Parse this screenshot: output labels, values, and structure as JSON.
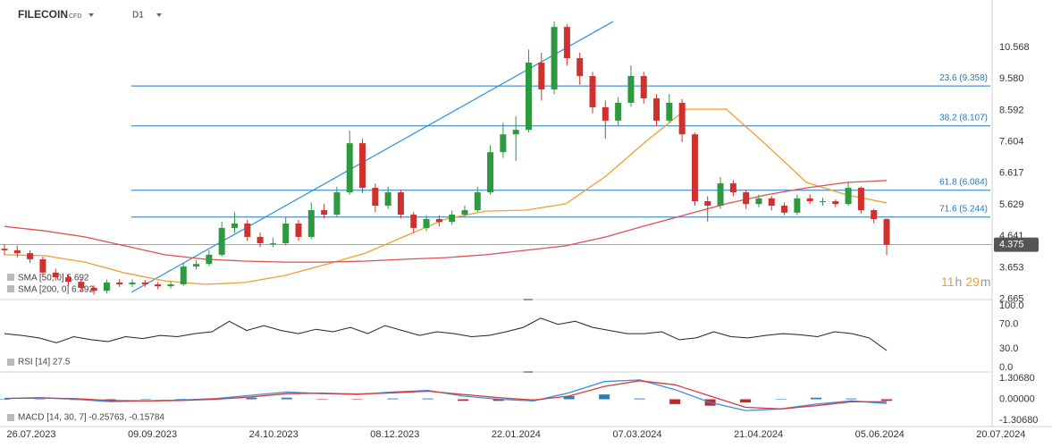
{
  "header": {
    "symbol": "FILECOIN",
    "kind": "CFD",
    "timeframe": "D1"
  },
  "chart_data": [
    {
      "type": "candlestick",
      "up_color": "#2e9a3f",
      "down_color": "#d0312d",
      "candles": [
        [
          4.25,
          4.4,
          4.05,
          4.2
        ],
        [
          4.2,
          4.35,
          3.98,
          4.11
        ],
        [
          4.11,
          4.2,
          3.8,
          3.92
        ],
        [
          3.92,
          4.0,
          3.4,
          3.5
        ],
        [
          3.5,
          3.62,
          3.25,
          3.35
        ],
        [
          3.35,
          3.45,
          3.1,
          3.21
        ],
        [
          3.21,
          3.3,
          2.9,
          3.02
        ],
        [
          3.02,
          3.1,
          2.8,
          2.93
        ],
        [
          2.93,
          3.28,
          2.85,
          3.19
        ],
        [
          3.19,
          3.3,
          3.05,
          3.13
        ],
        [
          3.13,
          3.28,
          3.05,
          3.19
        ],
        [
          3.19,
          3.27,
          3.05,
          3.13
        ],
        [
          3.13,
          3.2,
          2.98,
          3.07
        ],
        [
          3.07,
          3.22,
          3.0,
          3.13
        ],
        [
          3.13,
          3.8,
          3.08,
          3.69
        ],
        [
          3.69,
          3.9,
          3.6,
          3.77
        ],
        [
          3.77,
          4.2,
          3.7,
          4.06
        ],
        [
          4.06,
          5.1,
          4.0,
          4.9
        ],
        [
          4.9,
          5.4,
          4.75,
          5.04
        ],
        [
          5.04,
          5.15,
          4.5,
          4.62
        ],
        [
          4.62,
          4.75,
          4.3,
          4.42
        ],
        [
          4.42,
          4.6,
          4.3,
          4.42
        ],
        [
          4.42,
          5.25,
          4.35,
          5.04
        ],
        [
          5.04,
          5.15,
          4.5,
          4.62
        ],
        [
          4.62,
          5.7,
          4.55,
          5.46
        ],
        [
          5.46,
          5.65,
          5.2,
          5.32
        ],
        [
          5.32,
          6.2,
          5.25,
          6.02
        ],
        [
          6.02,
          7.95,
          5.95,
          7.56
        ],
        [
          7.56,
          7.7,
          6.0,
          6.16
        ],
        [
          6.16,
          6.3,
          5.4,
          5.6
        ],
        [
          5.6,
          6.2,
          5.5,
          6.02
        ],
        [
          6.02,
          6.1,
          5.2,
          5.32
        ],
        [
          5.32,
          5.4,
          4.75,
          4.9
        ],
        [
          4.9,
          5.3,
          4.8,
          5.18
        ],
        [
          5.18,
          5.3,
          4.95,
          5.09
        ],
        [
          5.09,
          5.45,
          5.0,
          5.32
        ],
        [
          5.32,
          5.6,
          5.25,
          5.46
        ],
        [
          5.46,
          6.2,
          5.4,
          6.02
        ],
        [
          6.02,
          7.5,
          5.95,
          7.28
        ],
        [
          7.28,
          8.2,
          7.1,
          7.84
        ],
        [
          7.84,
          8.4,
          7.0,
          7.98
        ],
        [
          7.98,
          10.5,
          7.9,
          10.09
        ],
        [
          10.09,
          10.4,
          8.9,
          9.25
        ],
        [
          9.25,
          11.38,
          9.1,
          11.21
        ],
        [
          11.21,
          11.3,
          10.0,
          10.23
        ],
        [
          10.23,
          10.4,
          9.4,
          9.67
        ],
        [
          9.67,
          9.8,
          8.5,
          8.69
        ],
        [
          8.69,
          8.9,
          7.7,
          8.27
        ],
        [
          8.27,
          9.0,
          8.1,
          8.83
        ],
        [
          8.83,
          10.0,
          8.7,
          9.67
        ],
        [
          9.67,
          9.8,
          8.8,
          8.97
        ],
        [
          8.97,
          9.1,
          8.1,
          8.27
        ],
        [
          8.27,
          9.1,
          8.2,
          8.83
        ],
        [
          8.83,
          8.95,
          7.6,
          7.84
        ],
        [
          7.84,
          7.9,
          5.6,
          5.74
        ],
        [
          5.74,
          5.9,
          5.1,
          5.6
        ],
        [
          5.6,
          6.5,
          5.5,
          6.3
        ],
        [
          6.3,
          6.4,
          5.9,
          6.02
        ],
        [
          6.02,
          6.1,
          5.5,
          5.65
        ],
        [
          5.65,
          5.95,
          5.55,
          5.83
        ],
        [
          5.83,
          5.9,
          5.45,
          5.6
        ],
        [
          5.6,
          5.7,
          5.3,
          5.38
        ],
        [
          5.38,
          5.95,
          5.3,
          5.83
        ],
        [
          5.83,
          5.95,
          5.65,
          5.74
        ],
        [
          5.74,
          5.85,
          5.6,
          5.74
        ],
        [
          5.74,
          5.8,
          5.55,
          5.65
        ],
        [
          5.65,
          6.35,
          5.6,
          6.16
        ],
        [
          6.16,
          6.2,
          5.35,
          5.46
        ],
        [
          5.46,
          5.5,
          5.05,
          5.18
        ],
        [
          5.18,
          5.2,
          4.05,
          4.375
        ]
      ],
      "series": [
        {
          "name": "SMA [50, 0] 5.692",
          "color": "#f0a030",
          "values": [
            4.06,
            4.03,
            3.83,
            3.49,
            3.24,
            3.13,
            3.19,
            3.41,
            3.75,
            4.11,
            4.65,
            5.18,
            5.43,
            5.46,
            5.66,
            6.53,
            7.62,
            8.63,
            8.63,
            7.51,
            6.33,
            5.94,
            5.69
          ]
        },
        {
          "name": "SMA [200, 0] 6.392",
          "color": "#e05050",
          "values": [
            4.95,
            4.81,
            4.62,
            4.34,
            4.06,
            3.92,
            3.86,
            3.83,
            3.83,
            3.86,
            3.92,
            3.97,
            4.06,
            4.2,
            4.34,
            4.62,
            4.98,
            5.32,
            5.66,
            5.94,
            6.16,
            6.33,
            6.39
          ]
        }
      ],
      "fib_levels": [
        {
          "value": 9.358,
          "label": "23.6 (9.358)"
        },
        {
          "value": 8.107,
          "label": "38.2 (8.107)"
        },
        {
          "value": 6.084,
          "label": "61.8 (6.084)"
        },
        {
          "value": 5.244,
          "label": "71.6 (5.244)"
        }
      ],
      "trendline": [
        2.88,
        11.38
      ],
      "last_price": 4.375,
      "ylim": [
        2.653,
        12.056
      ],
      "yticks": [
        10.568,
        {
          "value": 9.58,
          "label": "9.580"
        },
        8.592,
        7.604,
        6.617,
        5.629,
        4.641,
        3.653,
        2.665
      ],
      "grid": false,
      "timer": {
        "hours": "11",
        "h": "h",
        "minutes": "29",
        "m": "m"
      },
      "x_labels": [
        "26.07.2023",
        "09.09.2023",
        "24.10.2023",
        "08.12.2023",
        "22.01.2024",
        "07.03.2024",
        "21.04.2024",
        "05.06.2024",
        "20.07.2024"
      ]
    },
    {
      "type": "line",
      "title": "RSI [14] 27.5",
      "series": [
        {
          "color": "#222222",
          "values": [
            55,
            52,
            48,
            40,
            50,
            45,
            42,
            50,
            47,
            52,
            50,
            55,
            58,
            75,
            60,
            68,
            60,
            55,
            62,
            58,
            65,
            55,
            68,
            60,
            52,
            58,
            55,
            50,
            52,
            58,
            65,
            80,
            70,
            75,
            65,
            60,
            55,
            55,
            58,
            45,
            48,
            58,
            50,
            48,
            52,
            55,
            53,
            50,
            58,
            55,
            48,
            27.5
          ]
        }
      ],
      "ylim": [
        0,
        100
      ],
      "yticks": [
        {
          "value": 100,
          "label": "100.0"
        },
        {
          "value": 70,
          "label": "70.0"
        },
        {
          "value": 30,
          "label": "30.0"
        },
        {
          "value": 0,
          "label": "0.0"
        }
      ]
    },
    {
      "type": "macd",
      "title": "MACD [14, 30, 7] -0.25763, -0.15784",
      "histogram": [
        0,
        0.02,
        -0.04,
        -0.07,
        0,
        0.02,
        0.05,
        0.1,
        0.1,
        -0.03,
        -0.02,
        0.05,
        0.05,
        -0.1,
        -0.1,
        -0.05,
        0.2,
        0.3,
        0.05,
        -0.3,
        -0.4,
        -0.2,
        0,
        0.1,
        0.05,
        -0.1
      ],
      "hist_colors": [
        "#2a7fc4",
        "#c62828"
      ],
      "series": [
        {
          "color": "#3a8fe0",
          "values": [
            0.05,
            0.1,
            0,
            -0.15,
            -0.1,
            -0.05,
            0.05,
            0.25,
            0.45,
            0.35,
            0.3,
            0.45,
            0.55,
            0.2,
            0,
            -0.1,
            0.4,
            1.1,
            1.2,
            0.6,
            -0.2,
            -0.7,
            -0.6,
            -0.3,
            -0.1,
            -0.26
          ]
        },
        {
          "color": "#d63b3b",
          "values": [
            0.05,
            0.08,
            0.04,
            -0.08,
            -0.1,
            -0.07,
            0,
            0.15,
            0.35,
            0.38,
            0.32,
            0.4,
            0.5,
            0.3,
            0.1,
            -0.05,
            0.2,
            0.8,
            1.15,
            0.9,
            0.2,
            -0.5,
            -0.6,
            -0.4,
            -0.15,
            -0.16
          ]
        }
      ],
      "ylim": [
        -1.585,
        1.585
      ],
      "yticks": [
        {
          "value": 1.3068,
          "label": "1.30680"
        },
        {
          "value": 0,
          "label": "0.00000"
        },
        {
          "value": -1.3068,
          "label": "-1.30680"
        }
      ]
    }
  ]
}
